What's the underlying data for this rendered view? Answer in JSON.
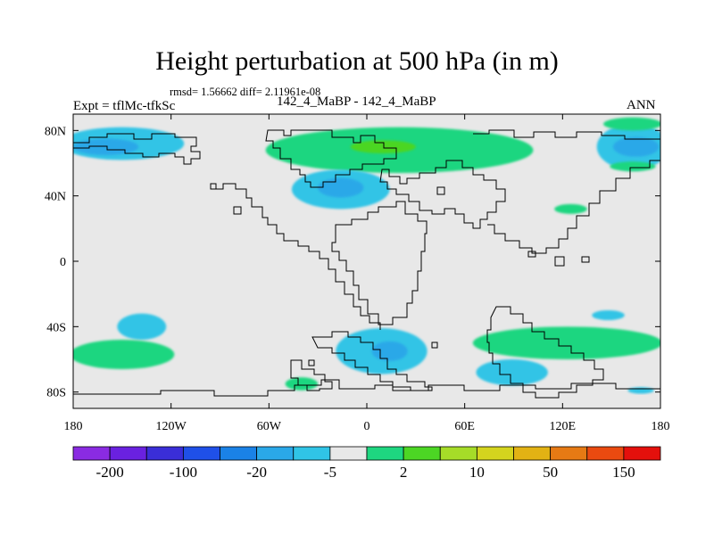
{
  "title": "Height perturbation at 500 hPa (in m)",
  "stats": "rmsd= 1.56662 diff= 2.11961e-08",
  "left_label": "Expt = tflMc-tfkSc",
  "center_label": "142_4_MaBP - 142_4_MaBP",
  "right_label": "ANN",
  "chart_data": {
    "type": "heatmap",
    "projection": "cylindrical-equidistant",
    "xlim": [
      -180,
      180
    ],
    "ylim": [
      -90,
      90
    ],
    "x_ticks": [
      {
        "value": -180,
        "label": "180"
      },
      {
        "value": -120,
        "label": "120W"
      },
      {
        "value": -60,
        "label": "60W"
      },
      {
        "value": 0,
        "label": "0"
      },
      {
        "value": 60,
        "label": "60E"
      },
      {
        "value": 120,
        "label": "120E"
      },
      {
        "value": 180,
        "label": "180"
      }
    ],
    "y_ticks": [
      {
        "value": 80,
        "label": "80N"
      },
      {
        "value": 40,
        "label": "40N"
      },
      {
        "value": 0,
        "label": "0"
      },
      {
        "value": -40,
        "label": "40S"
      },
      {
        "value": -80,
        "label": "80S"
      }
    ],
    "colorbar": {
      "colors": [
        "#8a2be2",
        "#6a21e0",
        "#3a2ed8",
        "#1f50e8",
        "#1a82e6",
        "#2aa8e8",
        "#30c4e6",
        "#e8e8e8",
        "#1ed680",
        "#4cd624",
        "#a6dc28",
        "#d4d41e",
        "#e2b214",
        "#e67a14",
        "#ea4a10",
        "#e4100c"
      ],
      "labels": [
        "-200",
        "-100",
        "-20",
        "-5",
        "2",
        "10",
        "50",
        "150"
      ],
      "label_boundaries": [
        1,
        3,
        5,
        7,
        9,
        11,
        13,
        15
      ]
    },
    "background_value_color": "#e8e8e8",
    "anomalies": [
      {
        "lon": -150,
        "lat": 72,
        "rx": 38,
        "ry": 10,
        "color": "#30c4e6",
        "name": "anomaly-blue-nw"
      },
      {
        "lon": -160,
        "lat": 70,
        "rx": 20,
        "ry": 5,
        "color": "#2aa8e8",
        "name": "anomaly-blue-nw-core"
      },
      {
        "lon": 20,
        "lat": 68,
        "rx": 82,
        "ry": 14,
        "color": "#1ed680",
        "name": "anomaly-green-north"
      },
      {
        "lon": 10,
        "lat": 70,
        "rx": 20,
        "ry": 4,
        "color": "#4cd624",
        "name": "anomaly-green-north-core"
      },
      {
        "lon": -16,
        "lat": 44,
        "rx": 30,
        "ry": 12,
        "color": "#30c4e6",
        "name": "anomaly-blue-atlantic"
      },
      {
        "lon": -16,
        "lat": 45,
        "rx": 14,
        "ry": 6,
        "color": "#2aa8e8",
        "name": "anomaly-blue-atlantic-core"
      },
      {
        "lon": 163,
        "lat": 70,
        "rx": 22,
        "ry": 14,
        "color": "#30c4e6",
        "name": "anomaly-blue-ne"
      },
      {
        "lon": 165,
        "lat": 70,
        "rx": 14,
        "ry": 6,
        "color": "#2aa8e8",
        "name": "anomaly-blue-ne-core"
      },
      {
        "lon": 163,
        "lat": 84,
        "rx": 18,
        "ry": 4,
        "color": "#1ed680",
        "name": "anomaly-green-ne-top"
      },
      {
        "lon": 163,
        "lat": 58,
        "rx": 14,
        "ry": 3,
        "color": "#1ed680",
        "name": "anomaly-green-ne-bottom"
      },
      {
        "lon": 125,
        "lat": 32,
        "rx": 10,
        "ry": 3,
        "color": "#1ed680",
        "name": "anomaly-green-east-small"
      },
      {
        "lon": -138,
        "lat": -40,
        "rx": 15,
        "ry": 8,
        "color": "#30c4e6",
        "name": "anomaly-blue-south-pacific"
      },
      {
        "lon": -150,
        "lat": -57,
        "rx": 32,
        "ry": 9,
        "color": "#1ed680",
        "name": "anomaly-green-south-west"
      },
      {
        "lon": 9,
        "lat": -55,
        "rx": 28,
        "ry": 14,
        "color": "#30c4e6",
        "name": "anomaly-blue-south-atlantic"
      },
      {
        "lon": 14,
        "lat": -55,
        "rx": 11,
        "ry": 6,
        "color": "#2aa8e8",
        "name": "anomaly-blue-south-atlantic-core"
      },
      {
        "lon": 123,
        "lat": -50,
        "rx": 58,
        "ry": 10,
        "color": "#1ed680",
        "name": "anomaly-green-south-east"
      },
      {
        "lon": 89,
        "lat": -68,
        "rx": 22,
        "ry": 8,
        "color": "#30c4e6",
        "name": "anomaly-blue-south-indian"
      },
      {
        "lon": 148,
        "lat": -33,
        "rx": 10,
        "ry": 3,
        "color": "#30c4e6",
        "name": "anomaly-blue-south-east-small"
      },
      {
        "lon": -40,
        "lat": -75,
        "rx": 10,
        "ry": 4,
        "color": "#1ed680",
        "name": "anomaly-green-antarctic"
      },
      {
        "lon": 168,
        "lat": -79,
        "rx": 8,
        "ry": 2,
        "color": "#30c4e6",
        "name": "anomaly-blue-antarctic-east"
      }
    ]
  }
}
